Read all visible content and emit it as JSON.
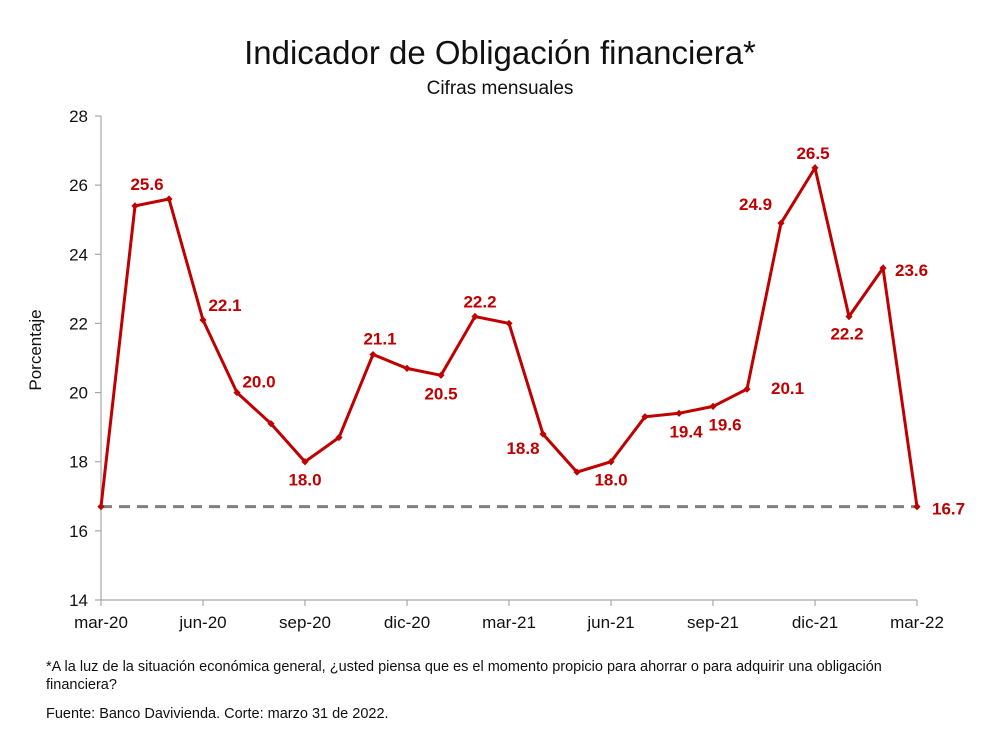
{
  "chart_data": {
    "type": "line",
    "title": "Indicador de Obligación financiera*",
    "subtitle": "Cifras mensuales",
    "ylabel": "Porcentaje",
    "xlabel": "",
    "ylim": [
      14,
      28
    ],
    "yticks": [
      "14",
      "16",
      "18",
      "20",
      "22",
      "24",
      "26",
      "28"
    ],
    "xticks": [
      "mar-20",
      "jun-20",
      "sep-20",
      "dic-20",
      "mar-21",
      "jun-21",
      "sep-21",
      "dic-21",
      "mar-22"
    ],
    "x": [
      "mar-20",
      "abr-20",
      "may-20",
      "jun-20",
      "jul-20",
      "ago-20",
      "sep-20",
      "oct-20",
      "nov-20",
      "dic-20",
      "ene-21",
      "feb-21",
      "mar-21",
      "abr-21",
      "may-21",
      "jun-21",
      "jul-21",
      "ago-21",
      "sep-21",
      "oct-21",
      "nov-21",
      "dic-21",
      "ene-22",
      "feb-22",
      "mar-22"
    ],
    "values": [
      16.7,
      25.4,
      25.6,
      22.1,
      20.0,
      19.1,
      18.0,
      18.7,
      21.1,
      20.7,
      20.5,
      22.2,
      22.0,
      18.8,
      17.7,
      18.0,
      19.3,
      19.4,
      19.6,
      20.1,
      24.9,
      26.5,
      22.2,
      23.6,
      16.7
    ],
    "data_labels": [
      {
        "index": 2,
        "text": "25.6"
      },
      {
        "index": 3,
        "text": "22.1"
      },
      {
        "index": 4,
        "text": "20.0"
      },
      {
        "index": 6,
        "text": "18.0"
      },
      {
        "index": 8,
        "text": "21.1"
      },
      {
        "index": 10,
        "text": "20.5"
      },
      {
        "index": 11,
        "text": "22.2"
      },
      {
        "index": 13,
        "text": "18.8"
      },
      {
        "index": 15,
        "text": "18.0"
      },
      {
        "index": 17,
        "text": "19.4"
      },
      {
        "index": 18,
        "text": "19.6"
      },
      {
        "index": 19,
        "text": "20.1"
      },
      {
        "index": 20,
        "text": "24.9"
      },
      {
        "index": 21,
        "text": "26.5"
      },
      {
        "index": 22,
        "text": "22.2"
      },
      {
        "index": 23,
        "text": "23.6"
      },
      {
        "index": 24,
        "text": "16.7"
      }
    ],
    "reference_line": 16.7,
    "grid": false,
    "colors": {
      "series": "#c00000",
      "reference": "#808080",
      "axis": "#a6a6a6"
    }
  },
  "footnote": "*A la luz de la situación económica general, ¿usted piensa que es el momento propicio para ahorrar o para adquirir una obligación financiera?",
  "source": "Fuente: Banco Davivienda. Corte: marzo 31 de 2022."
}
